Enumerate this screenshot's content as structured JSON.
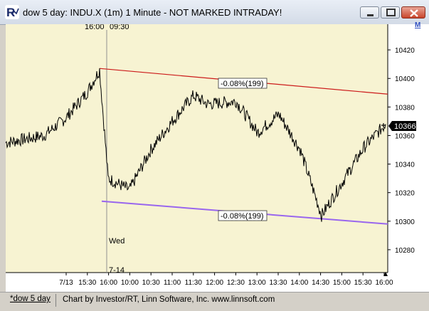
{
  "window": {
    "title": "dow 5 day: INDU.X (1m) 1 Minute - NOT MARKED INTRADAY!",
    "icon": "app-logo-icon",
    "controls": [
      "minimize-icon",
      "maximize-icon",
      "close-icon"
    ]
  },
  "footer": {
    "tab_label": "*dow 5 day",
    "credit": "Chart by Investor/RT, Linn Software, Inc. www.linnsoft.com"
  },
  "toolbar": {
    "m_label": "M"
  },
  "annotations": {
    "top_time_left": "16:00",
    "top_time_right": "09:30",
    "session_day": "Wed",
    "session_date": "7-14",
    "upper_trend_label": "-0.08%(199)",
    "lower_trend_label": "-0.08%(199)",
    "last_price_tag": "10366"
  },
  "colors": {
    "chart_bg": "#f7f3d2",
    "price": "#000000",
    "upper_trendline": "#cc1a1a",
    "lower_trendline": "#9966ee",
    "session_line": "#909090"
  },
  "chart_data": {
    "type": "line",
    "title": "dow 5 day: INDU.X (1m) 1 Minute - NOT MARKED INTRADAY!",
    "x_tick_labels": [
      "7/13",
      "15:30",
      "16:00",
      "10:00",
      "10:30",
      "11:00",
      "11:30",
      "12:00",
      "12:30",
      "13:00",
      "13:30",
      "14:00",
      "14:30",
      "15:00",
      "15:30",
      "16:00"
    ],
    "y_tick_labels": [
      "10280",
      "10300",
      "10320",
      "10340",
      "10360",
      "10380",
      "10400",
      "10420"
    ],
    "ylim": [
      10264,
      10438
    ],
    "last_price": 10366,
    "trendlines": [
      {
        "label": "-0.08%(199)",
        "start_value": 10407,
        "end_value": 10389
      },
      {
        "label": "-0.08%(199)",
        "start_value": 10314,
        "end_value": 10298
      }
    ],
    "series": [
      {
        "x": [
          "7/13 start",
          "7/13 14:30",
          "7/13 15:00",
          "7/13 15:30",
          "7/13 16:00",
          "7/14 09:45",
          "7/14 10:00",
          "7/14 10:30",
          "7/14 11:00",
          "7/14 11:30",
          "7/14 12:00",
          "7/14 12:30",
          "7/14 13:00",
          "7/14 13:30",
          "7/14 14:00",
          "7/14 14:30",
          "7/14 15:00",
          "7/14 15:30",
          "7/14 16:00"
        ],
        "values": [
          10355,
          10360,
          10372,
          10390,
          10406,
          10330,
          10322,
          10350,
          10370,
          10388,
          10382,
          10384,
          10362,
          10375,
          10350,
          10304,
          10328,
          10352,
          10368
        ]
      }
    ],
    "grid": false
  }
}
